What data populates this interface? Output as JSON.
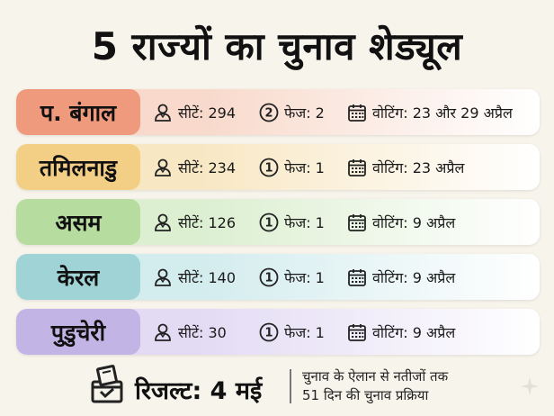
{
  "title": "5 राज्यों का चुनाव शेड्यूल",
  "rows": [
    {
      "state": "प. बंगाल",
      "seats": "सीटें: 294",
      "phase_number": "2",
      "phase": "फेज: 2",
      "voting": "वोटिंग: 23 और 29 अप्रैल",
      "pill_color": "#ef9a7c",
      "tint_color": "#f8d9cb"
    },
    {
      "state": "तमिलनाडु",
      "seats": "सीटें: 234",
      "phase_number": "1",
      "phase": "फेज: 1",
      "voting": "वोटिंग: 23 अप्रैल",
      "pill_color": "#f3cf86",
      "tint_color": "#f8e7c3"
    },
    {
      "state": "असम",
      "seats": "सीटें: 126",
      "phase_number": "1",
      "phase": "फेज: 1",
      "voting": "वोटिंग: 9 अप्रैल",
      "pill_color": "#b7dca0",
      "tint_color": "#dcefd1"
    },
    {
      "state": "केरल",
      "seats": "सीटें: 140",
      "phase_number": "1",
      "phase": "फेज: 1",
      "voting": "वोटिंग: 9 अप्रैल",
      "pill_color": "#9fd3d6",
      "tint_color": "#d3ecee"
    },
    {
      "state": "पुडुचेरी",
      "seats": "सीटें: 30",
      "phase_number": "1",
      "phase": "फेज: 1",
      "voting": "वोटिंग: 9 अप्रैल",
      "pill_color": "#c3b4e6",
      "tint_color": "#e3dbf4"
    }
  ],
  "footer": {
    "result": "रिजल्ट: 4 मई",
    "note_line1": "चुनाव के ऐलान से नतीजों तक",
    "note_line2": "51 दिन की चुनाव प्रक्रिया"
  },
  "icons": {
    "seats": "person-icon",
    "phase": "circled-number-icon",
    "voting": "calendar-icon",
    "result": "ballot-box-icon"
  }
}
